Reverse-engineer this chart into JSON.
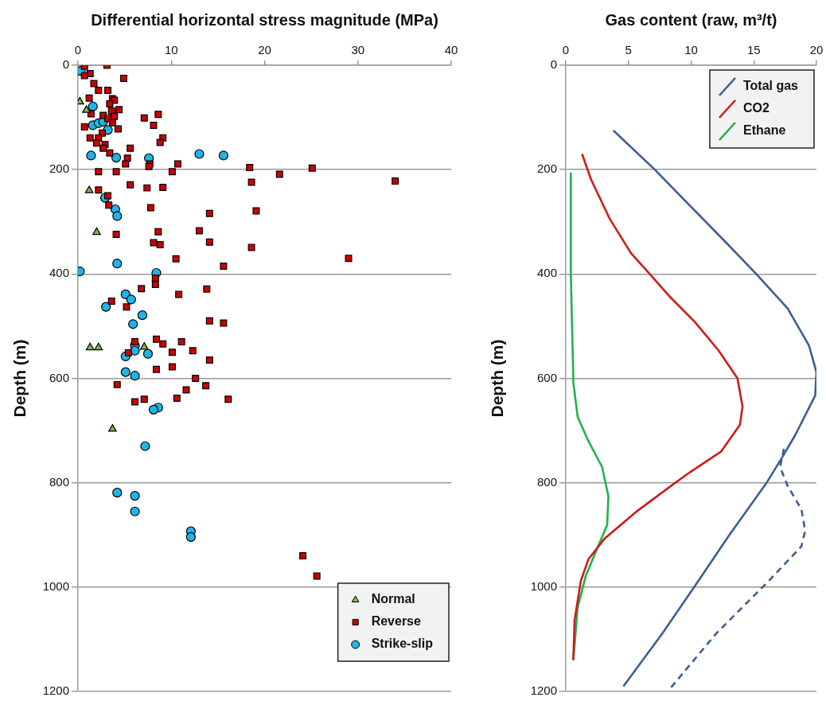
{
  "chart_data": [
    {
      "type": "scatter",
      "xlabel": "Differential horizontal stress magnitude (MPa)",
      "ylabel": "Depth (m)",
      "xlim": [
        0,
        40
      ],
      "xticks": [
        0,
        10,
        20,
        30,
        40
      ],
      "ylim": [
        1200,
        0
      ],
      "yticks": [
        0,
        200,
        400,
        600,
        800,
        1000,
        1200
      ],
      "grid": "y",
      "legend": "bottom right",
      "series": [
        {
          "name": "Normal",
          "color": "#77b94a",
          "marker": "triangle",
          "x": [
            0.2,
            0.9,
            1.2,
            2.0,
            1.3,
            2.2,
            7.1,
            3.7
          ],
          "values": [
            70,
            86,
            240,
            320,
            541,
            541,
            540,
            697
          ]
        },
        {
          "name": "Reverse",
          "color": "#cc0000",
          "marker": "square",
          "x": [
            0.7,
            3.1,
            1.3,
            0.7,
            4.9,
            1.7,
            2.2,
            3.2,
            1.2,
            3.7,
            3.9,
            3.4,
            4.4,
            3.6,
            1.4,
            2.7,
            3.9,
            3.2,
            3.7,
            7.1,
            8.6,
            8.1,
            0.7,
            4.3,
            2.6,
            9.1,
            8.8,
            1.3,
            2.2,
            2.0,
            2.9,
            2.7,
            5.6,
            3.4,
            5.3,
            5.1,
            7.7,
            7.6,
            10.7,
            2.2,
            4.1,
            10.1,
            18.4,
            21.6,
            18.6,
            5.6,
            7.4,
            9.1,
            2.2,
            25.1,
            34.0,
            3.2,
            3.3,
            7.8,
            14.1,
            19.1,
            4.1,
            8.6,
            13.0,
            8.1,
            8.8,
            14.1,
            18.6,
            29.0,
            10.5,
            15.6,
            8.3,
            8.3,
            6.8,
            13.8,
            10.8,
            3.6,
            5.2,
            14.1,
            15.6,
            6.1,
            8.4,
            9.1,
            11.1,
            10.1,
            12.3,
            14.1,
            5.4,
            8.4,
            10.1,
            12.6,
            4.2,
            13.7,
            11.6,
            10.6,
            7.1,
            16.1,
            6.1,
            24.1,
            25.6
          ],
          "values": [
            2,
            0,
            16,
            20,
            25,
            35,
            48,
            48,
            63,
            64,
            67,
            74,
            85,
            88,
            93,
            96,
            98,
            102,
            110,
            101,
            94,
            115,
            118,
            122,
            130,
            139,
            148,
            139,
            139,
            149,
            152,
            159,
            159,
            168,
            178,
            189,
            189,
            194,
            189,
            204,
            204,
            204,
            196,
            209,
            224,
            229,
            235,
            234,
            239,
            197,
            222,
            250,
            268,
            273,
            284,
            279,
            324,
            319,
            317,
            340,
            344,
            339,
            349,
            370,
            371,
            385,
            408,
            420,
            428,
            429,
            439,
            452,
            463,
            490,
            494,
            530,
            525,
            534,
            530,
            550,
            547,
            565,
            551,
            583,
            578,
            600,
            612,
            614,
            622,
            638,
            640,
            640,
            645,
            940,
            979
          ]
        },
        {
          "name": "Strike-slip",
          "color": "#1fb4e8",
          "marker": "circle",
          "x": [
            0.3,
            1.6,
            1.6,
            2.2,
            2.7,
            3.2,
            1.4,
            4.1,
            7.6,
            13.0,
            15.6,
            2.9,
            4.0,
            4.2,
            4.2,
            0.2,
            8.4,
            5.1,
            5.7,
            3.0,
            6.9,
            5.9,
            6.1,
            6.1,
            5.1,
            7.5,
            5.1,
            6.1,
            8.6,
            8.1,
            7.2,
            4.2,
            6.1,
            6.1,
            12.1,
            12.1
          ],
          "values": [
            11,
            79,
            115,
            111,
            108,
            124,
            173,
            177,
            178,
            170,
            173,
            254,
            276,
            289,
            380,
            395,
            398,
            439,
            449,
            463,
            479,
            496,
            537,
            547,
            558,
            553,
            588,
            595,
            656,
            660,
            730,
            819,
            825,
            855,
            893,
            904
          ]
        }
      ]
    },
    {
      "type": "line",
      "xlabel": "Gas content (raw, m³/t)",
      "ylabel": "Depth (m)",
      "xlim": [
        0,
        20
      ],
      "xticks": [
        0,
        5,
        10,
        15,
        20
      ],
      "ylim": [
        1200,
        0
      ],
      "yticks": [
        0,
        200,
        400,
        600,
        800,
        1000,
        1200
      ],
      "grid": "y",
      "legend": "top right",
      "marker": "none",
      "series": [
        {
          "name": "Total gas",
          "color": "#3c5e8f",
          "x": [
            3.8,
            7.1,
            9.9,
            12.8,
            15.2,
            17.7,
            19.4,
            20.0,
            19.9,
            18.3,
            17.3,
            16.0,
            13.0,
            10.3,
            7.7,
            4.6
          ],
          "values": [
            125,
            200,
            269,
            340,
            400,
            466,
            537,
            588,
            633,
            709,
            750,
            801,
            902,
            998,
            1089,
            1190
          ]
        },
        {
          "color": "#3c5e8f",
          "line_style": "dashed",
          "x": [
            17.4,
            17.1,
            17.7,
            18.8,
            19.1,
            18.8,
            16.2,
            12.0,
            8.2
          ],
          "values": [
            735,
            770,
            806,
            851,
            892,
            922,
            988,
            1089,
            1198
          ]
        },
        {
          "name": "CO2",
          "color": "#d11a1a",
          "x": [
            1.3,
            2.0,
            3.5,
            5.2,
            6.7,
            8.2,
            10.3,
            12.2,
            13.7,
            14.1,
            13.9,
            12.4,
            9.9,
            8.4,
            5.6,
            3.1,
            1.8,
            1.2,
            0.7,
            0.6
          ],
          "values": [
            170,
            218,
            294,
            360,
            400,
            441,
            492,
            547,
            600,
            654,
            689,
            740,
            780,
            806,
            856,
            907,
            947,
            988,
            1064,
            1140
          ]
        },
        {
          "name": "Ethane",
          "color": "#1fb34a",
          "x": [
            0.4,
            0.4,
            0.6,
            0.6,
            0.95,
            1.8,
            2.9,
            3.4,
            3.3,
            2.4,
            1.6,
            0.95,
            0.6
          ],
          "values": [
            207,
            400,
            598,
            608,
            674,
            720,
            770,
            826,
            881,
            932,
            978,
            1039,
            1140
          ]
        }
      ]
    }
  ]
}
